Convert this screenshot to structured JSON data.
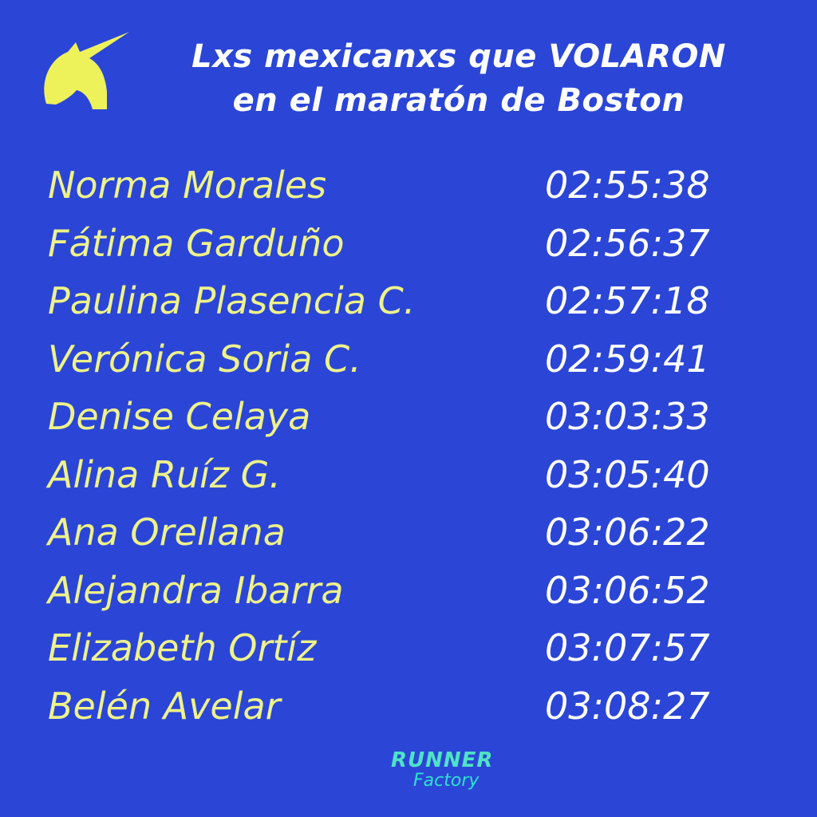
{
  "header": {
    "title": [
      "Lxs mexicanxs que VOLARON",
      "en el maratón de Boston"
    ]
  },
  "table": {
    "rows": [
      [
        "Norma Morales",
        "02:55:38"
      ],
      [
        "Fátima Garduño",
        "02:56:37"
      ],
      [
        "Paulina Plasencia C.",
        "02:57:18"
      ],
      [
        "Verónica Soria C.",
        "02:59:41"
      ],
      [
        "Denise Celaya",
        "03:03:33"
      ],
      [
        "Alina Ruíz G.",
        "03:05:40"
      ],
      [
        "Ana Orellana",
        "03:06:22"
      ],
      [
        "Alejandra Ibarra",
        "03:06:52"
      ],
      [
        "Elizabeth Ortíz",
        "03:07:57"
      ],
      [
        "Belén Avelar",
        "03:08:27"
      ]
    ]
  },
  "footer": {
    "logo": [
      "RUNNER",
      "Factory"
    ]
  }
}
